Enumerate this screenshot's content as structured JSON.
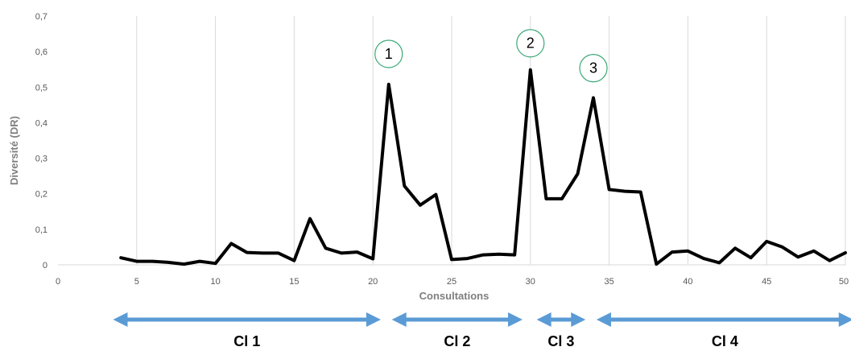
{
  "chart_data": {
    "type": "line",
    "xlabel": "Consultations",
    "ylabel": "Diversité (DR)",
    "xlim": [
      0,
      50
    ],
    "ylim": [
      0,
      0.7
    ],
    "x_ticks": [
      "0",
      "5",
      "10",
      "15",
      "20",
      "25",
      "30",
      "35",
      "40",
      "45",
      "50"
    ],
    "y_ticks": [
      "0",
      "0,1",
      "0,2",
      "0,3",
      "0,4",
      "0,5",
      "0,6",
      "0,7"
    ],
    "grid": "vertical",
    "series": [
      {
        "color": "#000000",
        "points": [
          [
            4,
            0.02
          ],
          [
            5,
            0.01
          ],
          [
            6,
            0.01
          ],
          [
            7,
            0.007
          ],
          [
            8,
            0.002
          ],
          [
            9,
            0.01
          ],
          [
            10,
            0.004
          ],
          [
            11,
            0.06
          ],
          [
            12,
            0.035
          ],
          [
            13,
            0.033
          ],
          [
            14,
            0.033
          ],
          [
            15,
            0.012
          ],
          [
            16,
            0.13
          ],
          [
            17,
            0.047
          ],
          [
            18,
            0.033
          ],
          [
            19,
            0.036
          ],
          [
            20,
            0.017
          ],
          [
            21,
            0.508
          ],
          [
            22,
            0.222
          ],
          [
            23,
            0.168
          ],
          [
            24,
            0.198
          ],
          [
            25,
            0.015
          ],
          [
            26,
            0.018
          ],
          [
            27,
            0.028
          ],
          [
            28,
            0.03
          ],
          [
            29,
            0.028
          ],
          [
            30,
            0.549
          ],
          [
            31,
            0.186
          ],
          [
            32,
            0.186
          ],
          [
            33,
            0.256
          ],
          [
            34,
            0.47
          ],
          [
            35,
            0.212
          ],
          [
            36,
            0.207
          ],
          [
            37,
            0.205
          ],
          [
            38,
            0.002
          ],
          [
            39,
            0.036
          ],
          [
            40,
            0.039
          ],
          [
            41,
            0.018
          ],
          [
            42,
            0.006
          ],
          [
            43,
            0.047
          ],
          [
            44,
            0.02
          ],
          [
            45,
            0.066
          ],
          [
            46,
            0.05
          ],
          [
            47,
            0.022
          ],
          [
            48,
            0.039
          ],
          [
            49,
            0.012
          ],
          [
            50,
            0.034
          ]
        ]
      }
    ],
    "annotations": [
      {
        "label": "1",
        "x": 21,
        "y": 0.58
      },
      {
        "label": "2",
        "x": 30,
        "y": 0.61
      },
      {
        "label": "3",
        "x": 34,
        "y": 0.54
      }
    ],
    "clusters": [
      {
        "label": "Cl 1",
        "x_start": 3.5,
        "x_end": 20.5
      },
      {
        "label": "Cl 2",
        "x_start": 21.2,
        "x_end": 29.5
      },
      {
        "label": "Cl 3",
        "x_start": 30.4,
        "x_end": 33.5
      },
      {
        "label": "Cl 4",
        "x_start": 34.2,
        "x_end": 50.5
      }
    ],
    "cluster_arrow_color": "#5b9bd5",
    "annotation_circle_color": "#3aa876"
  }
}
